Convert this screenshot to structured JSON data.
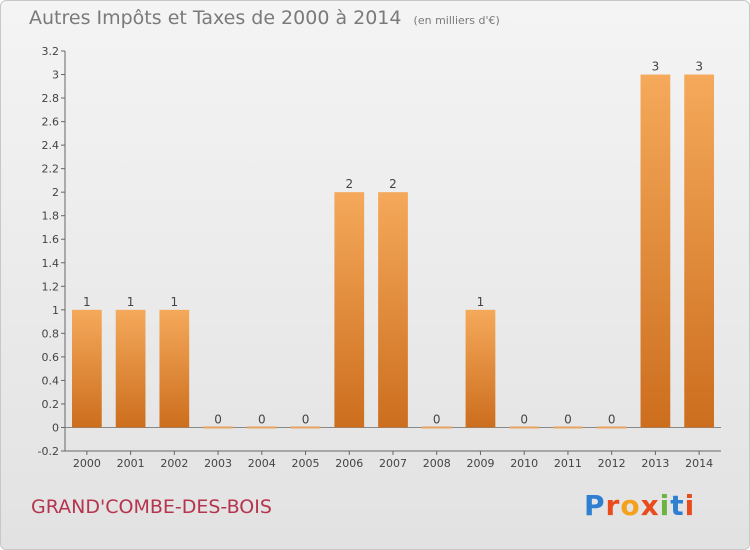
{
  "header": {
    "title": "Autres Impôts et Taxes de 2000 à 2014",
    "unit": "(en milliers d'€)"
  },
  "footer": {
    "commune": "GRAND'COMBE-DES-BOIS",
    "brand": "Proxiti",
    "brand_colors": [
      "#2e7fd2",
      "#e84b1c",
      "#f4a21e",
      "#e84b1c",
      "#6cb33f",
      "#2e7fd2",
      "#e84b1c"
    ]
  },
  "colors": {
    "bar_top": "#f5a95a",
    "bar_bottom": "#cc6e1e",
    "title": "#7a7a7a",
    "commune": "#b5344e"
  },
  "chart_data": {
    "type": "bar",
    "title": "Autres Impôts et Taxes de 2000 à 2014",
    "subtitle": "(en milliers d'€)",
    "xlabel": "",
    "ylabel": "",
    "categories": [
      "2000",
      "2001",
      "2002",
      "2003",
      "2004",
      "2005",
      "2006",
      "2007",
      "2008",
      "2009",
      "2010",
      "2011",
      "2012",
      "2013",
      "2014"
    ],
    "values": [
      1,
      1,
      1,
      0,
      0,
      0,
      2,
      2,
      0,
      1,
      0,
      0,
      0,
      3,
      3
    ],
    "data_labels": [
      "1",
      "1",
      "1",
      "0",
      "0",
      "0",
      "2",
      "2",
      "0",
      "1",
      "0",
      "0",
      "0",
      "3",
      "3"
    ],
    "ylim": [
      -0.2,
      3.2
    ],
    "yticks": [
      -0.2,
      0,
      0.2,
      0.4,
      0.6,
      0.8,
      1,
      1.2,
      1.4,
      1.6,
      1.8,
      2,
      2.2,
      2.4,
      2.6,
      2.8,
      3,
      3.2
    ],
    "ytick_labels": [
      "-0.2",
      "0",
      "0.2",
      "0.4",
      "0.6",
      "0.8",
      "1",
      "1.2",
      "1.4",
      "1.6",
      "1.8",
      "2",
      "2.2",
      "2.4",
      "2.6",
      "2.8",
      "3",
      "3.2"
    ],
    "grid": false,
    "legend": "none"
  }
}
